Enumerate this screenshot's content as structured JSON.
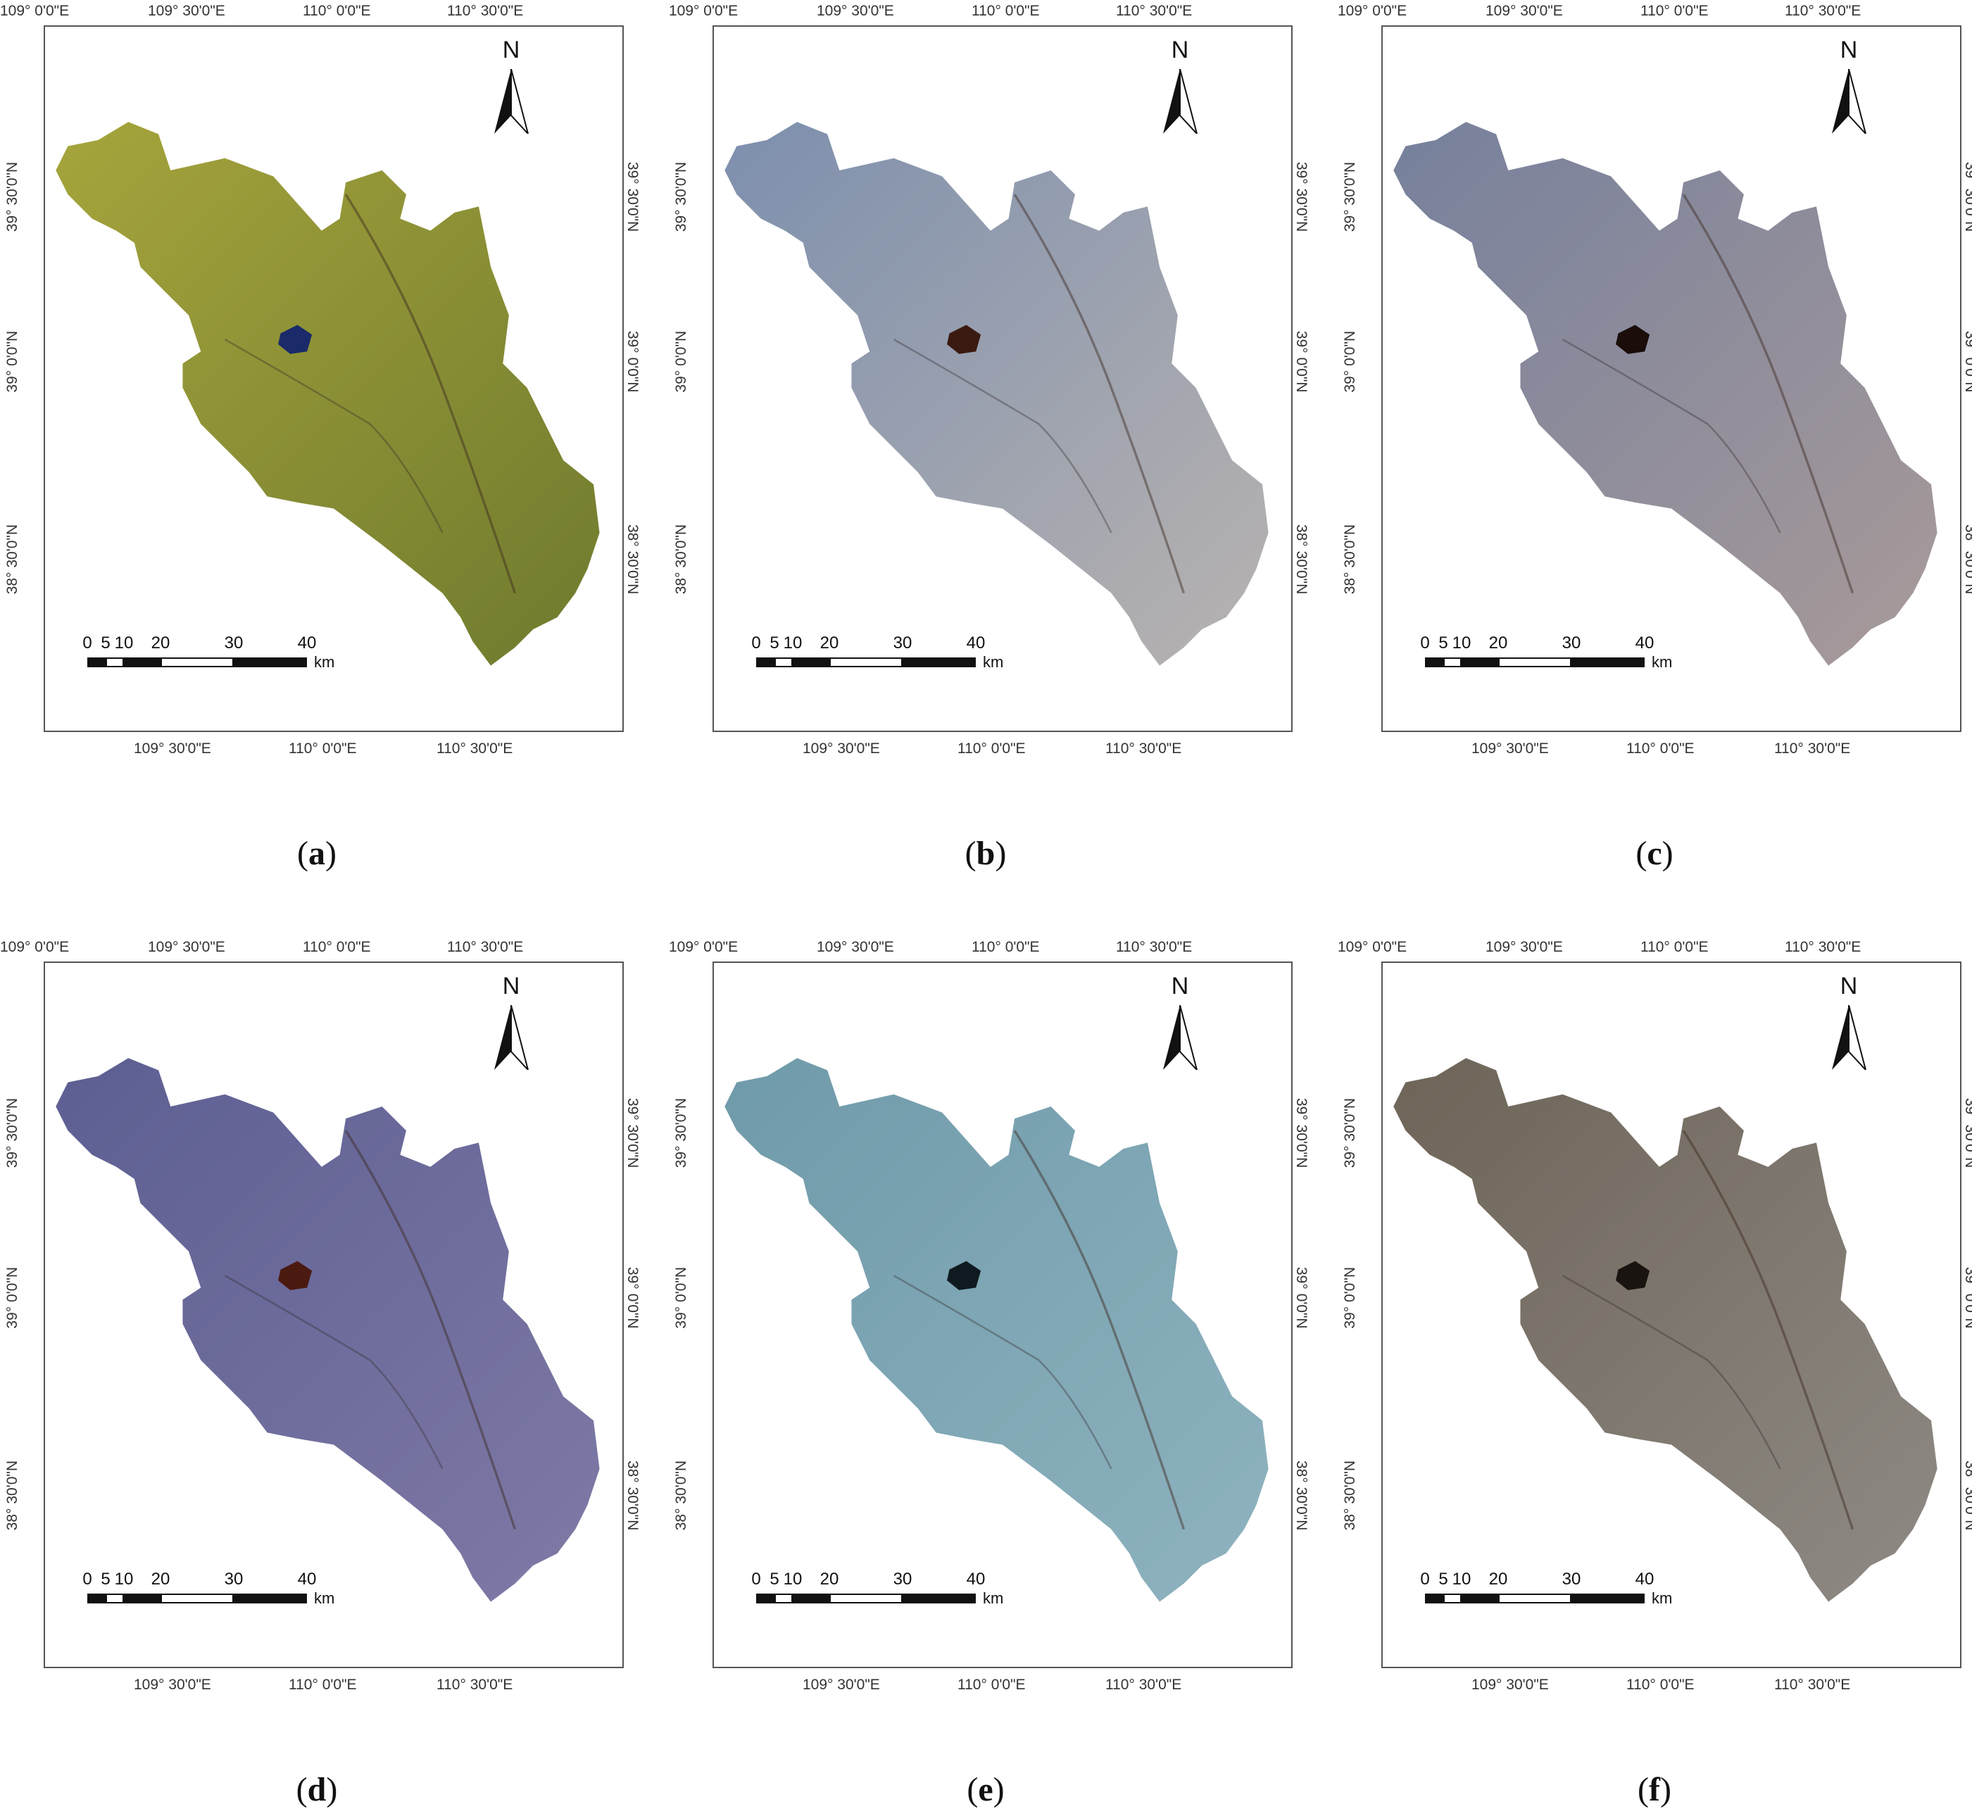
{
  "top_ticks": [
    "109° 0'0\"E",
    "109° 30'0\"E",
    "110° 0'0\"E",
    "110° 30'0\"E"
  ],
  "bottom_ticks": [
    "109° 30'0\"E",
    "110° 0'0\"E",
    "110° 30'0\"E"
  ],
  "side_ticks": [
    "39° 30'0\"N",
    "39° 0'0\"N",
    "38° 30'0\"N"
  ],
  "north_label": "N",
  "scale": {
    "numbers": [
      "0",
      "5",
      "10",
      "20",
      "30",
      "40"
    ],
    "unit": "km"
  },
  "panels": [
    {
      "label": "a",
      "fill": "#a6a53c",
      "fill2": "#6f7a2e",
      "lake": "#1a2a6a"
    },
    {
      "label": "b",
      "fill": "#7d8fae",
      "fill2": "#b8b3b0",
      "lake": "#3a1a10"
    },
    {
      "label": "c",
      "fill": "#76809c",
      "fill2": "#a89a9a",
      "lake": "#1a0d0a"
    },
    {
      "label": "d",
      "fill": "#5c5e92",
      "fill2": "#7f7aa6",
      "lake": "#4a1a10"
    },
    {
      "label": "e",
      "fill": "#6f9aaa",
      "fill2": "#8fb3bf",
      "lake": "#0f1a20"
    },
    {
      "label": "f",
      "fill": "#6e6458",
      "fill2": "#8e8a84",
      "lake": "#1a1410"
    }
  ]
}
